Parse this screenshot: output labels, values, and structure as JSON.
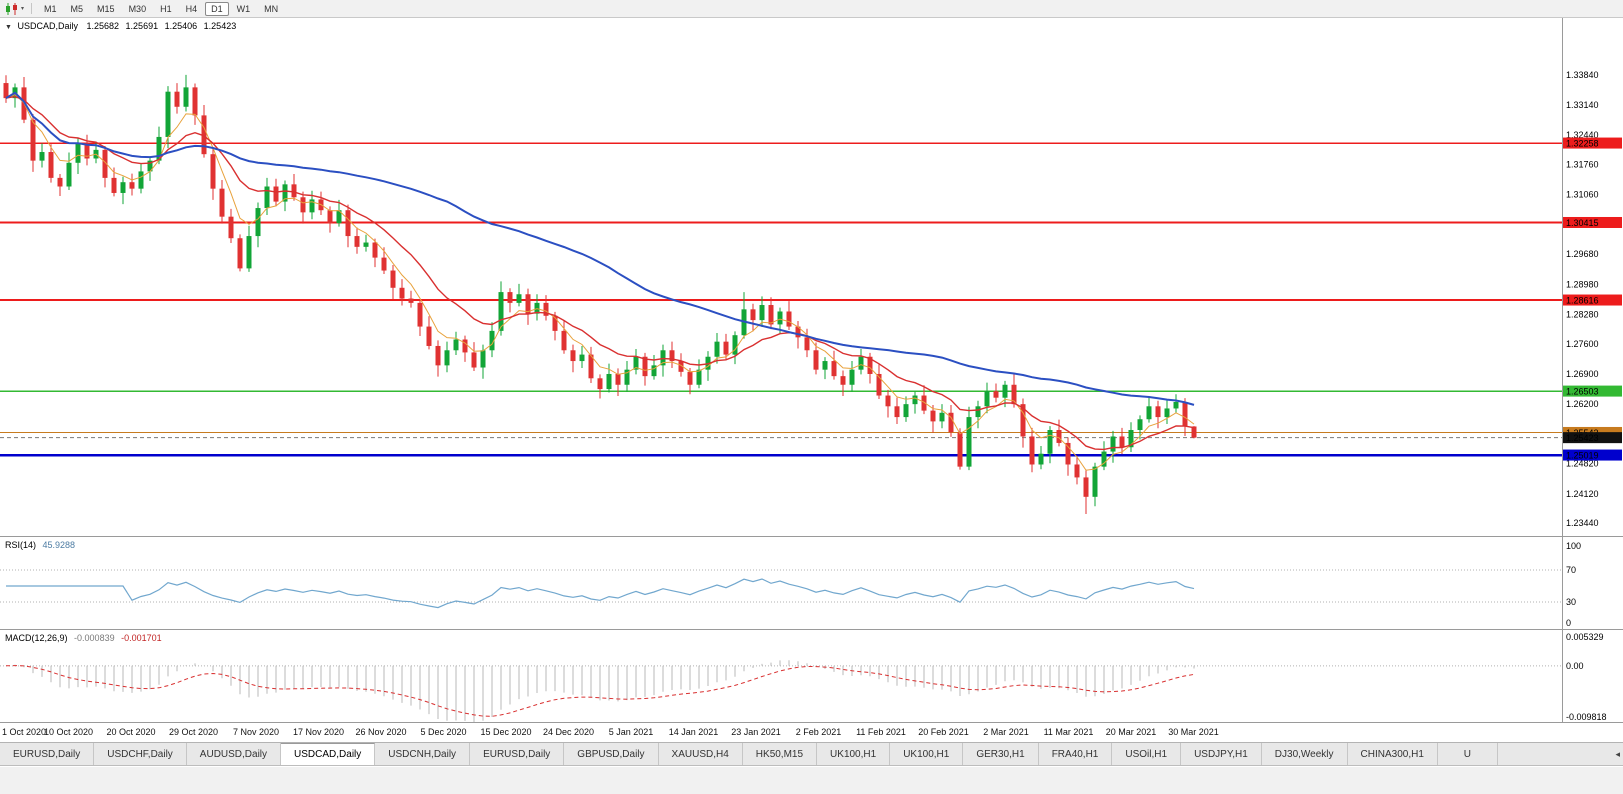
{
  "icons": {
    "dropdown": "▼",
    "toolbar_caret": "▾",
    "tab_scroll": "◂"
  },
  "toolbar": {
    "timeframes": [
      "M1",
      "M5",
      "M15",
      "M30",
      "H1",
      "H4",
      "D1",
      "W1",
      "MN"
    ],
    "active_timeframe": "D1"
  },
  "chart": {
    "title": "USDCAD,Daily",
    "readout": {
      "open": "1.25682",
      "high": "1.25691",
      "low": "1.25406",
      "close": "1.25423"
    },
    "price_axis": [
      "1.33840",
      "1.33140",
      "1.32440",
      "1.31760",
      "1.31060",
      "1.30360",
      "1.29680",
      "1.28980",
      "1.28280",
      "1.27600",
      "1.26900",
      "1.26200",
      "1.25520",
      "1.24820",
      "1.24120",
      "1.23440"
    ],
    "date_axis": [
      "1 Oct 2020",
      "10 Oct 2020",
      "20 Oct 2020",
      "29 Oct 2020",
      "7 Nov 2020",
      "17 Nov 2020",
      "26 Nov 2020",
      "5 Dec 2020",
      "15 Dec 2020",
      "24 Dec 2020",
      "5 Jan 2021",
      "14 Jan 2021",
      "23 Jan 2021",
      "2 Feb 2021",
      "11 Feb 2021",
      "20 Feb 2021",
      "2 Mar 2021",
      "11 Mar 2021",
      "20 Mar 2021",
      "30 Mar 2021"
    ],
    "levels": [
      {
        "price": 1.32258,
        "label": "1.32258",
        "color": "#ED1C1C",
        "width": 1.6
      },
      {
        "price": 1.30415,
        "label": "1.30415",
        "color": "#ED1C1C",
        "width": 1.6
      },
      {
        "price": 1.28616,
        "label": "1.28616",
        "color": "#ED1C1C",
        "width": 1.6
      },
      {
        "price": 1.26503,
        "label": "1.26503",
        "color": "#33B933",
        "width": 1.6
      },
      {
        "price": 1.25543,
        "label": "1.25543",
        "color": "#C77B1F",
        "width": 1.2
      },
      {
        "price": 1.25019,
        "label": "1.25019",
        "color": "#0000CD",
        "width": 2.6
      }
    ],
    "current_price": {
      "value": 1.25423,
      "label": "1.25423",
      "color": "#111111"
    },
    "colors": {
      "up": "#12A537",
      "down": "#E03232"
    }
  },
  "chart_data": {
    "type": "candlestick",
    "symbol": "USDCAD",
    "timeframe": "Daily",
    "ylim": [
      1.2328,
      1.3451
    ],
    "open_first": 1.3365,
    "closes": [
      1.333,
      1.3355,
      1.328,
      1.3185,
      1.3205,
      1.3145,
      1.3125,
      1.318,
      1.3225,
      1.319,
      1.321,
      1.3145,
      1.311,
      1.3135,
      1.312,
      1.316,
      1.3185,
      1.324,
      1.3345,
      1.331,
      1.3355,
      1.329,
      1.32,
      1.312,
      1.3055,
      1.3005,
      1.2935,
      1.301,
      1.3075,
      1.3125,
      1.309,
      1.313,
      1.31,
      1.3065,
      1.3095,
      1.307,
      1.304,
      1.307,
      1.301,
      1.2985,
      1.2995,
      1.296,
      1.293,
      1.289,
      1.2865,
      1.2855,
      1.28,
      1.2755,
      1.271,
      1.2745,
      1.277,
      1.274,
      1.2705,
      1.2745,
      1.279,
      1.288,
      1.2855,
      1.2875,
      1.283,
      1.2855,
      1.2825,
      1.279,
      1.2745,
      1.272,
      1.2735,
      1.268,
      1.2655,
      1.269,
      1.2665,
      1.27,
      1.273,
      1.2685,
      1.271,
      1.2745,
      1.272,
      1.2695,
      1.2665,
      1.27,
      1.273,
      1.2765,
      1.2735,
      1.278,
      1.284,
      1.2815,
      1.285,
      1.2805,
      1.2835,
      1.28,
      1.2775,
      1.2745,
      1.27,
      1.272,
      1.2685,
      1.2665,
      1.27,
      1.273,
      1.269,
      1.264,
      1.2615,
      1.259,
      1.262,
      1.264,
      1.2605,
      1.258,
      1.26,
      1.2555,
      1.2475,
      1.259,
      1.2615,
      1.265,
      1.2635,
      1.2665,
      1.262,
      1.2545,
      1.248,
      1.2505,
      1.256,
      1.253,
      1.248,
      1.245,
      1.2405,
      1.2475,
      1.251,
      1.2545,
      1.252,
      1.256,
      1.2585,
      1.2615,
      1.259,
      1.261,
      1.2625,
      1.25682,
      1.25423
    ],
    "wick_high_cycle": [
      0.0018,
      0.0009,
      0.0024,
      0.0013,
      0.002
    ],
    "wick_low_cycle": [
      0.0011,
      0.0022,
      0.0008,
      0.0026,
      0.0016
    ],
    "overrides": {
      "20": {
        "h": 1.3384
      },
      "26": {
        "l": 1.2928
      },
      "55": {
        "h": 1.2905
      },
      "82": {
        "h": 1.288
      },
      "106": {
        "l": 1.2468
      },
      "114": {
        "l": 1.2462
      },
      "120": {
        "l": 1.2365
      },
      "132": {
        "o": 1.25682,
        "h": 1.25691,
        "l": 1.25406,
        "c": 1.25423
      }
    },
    "indicators": {
      "moving_averages": [
        {
          "name": "fast",
          "method": "ema",
          "period": 5,
          "color": "#E8A23C",
          "width": 1
        },
        {
          "name": "medium",
          "method": "ema",
          "period": 13,
          "color": "#D93030",
          "width": 1.4
        },
        {
          "name": "slow",
          "method": "sma",
          "period": 50,
          "color": "#2B4FC2",
          "width": 2
        }
      ],
      "rsi": {
        "label": "RSI(14)",
        "value": "45.9288",
        "axis_labels": [
          "100",
          "70",
          "30",
          "0"
        ],
        "upper_level": 70,
        "lower_level": 30,
        "color": "#71A7CE"
      },
      "macd": {
        "label": "MACD(12,26,9)",
        "value_macd": "-0.000839",
        "value_signal": "-0.001701",
        "axis_labels": [
          "0.005329",
          "0.00",
          "-0.009818"
        ],
        "axis_max": 0.005329,
        "axis_min": -0.009818,
        "histogram_color": "#B9B9B9",
        "signal_color": "#D93030"
      }
    }
  },
  "tabs": {
    "active_index": 3,
    "items": [
      "EURUSD,Daily",
      "USDCHF,Daily",
      "AUDUSD,Daily",
      "USDCAD,Daily",
      "USDCNH,Daily",
      "EURUSD,Daily",
      "GBPUSD,Daily",
      "XAUUSD,H4",
      "HK50,M15",
      "UK100,H1",
      "UK100,H1",
      "GER30,H1",
      "FRA40,H1",
      "USOil,H1",
      "USDJPY,H1",
      "DJ30,Weekly",
      "CHINA300,H1",
      "U"
    ]
  }
}
